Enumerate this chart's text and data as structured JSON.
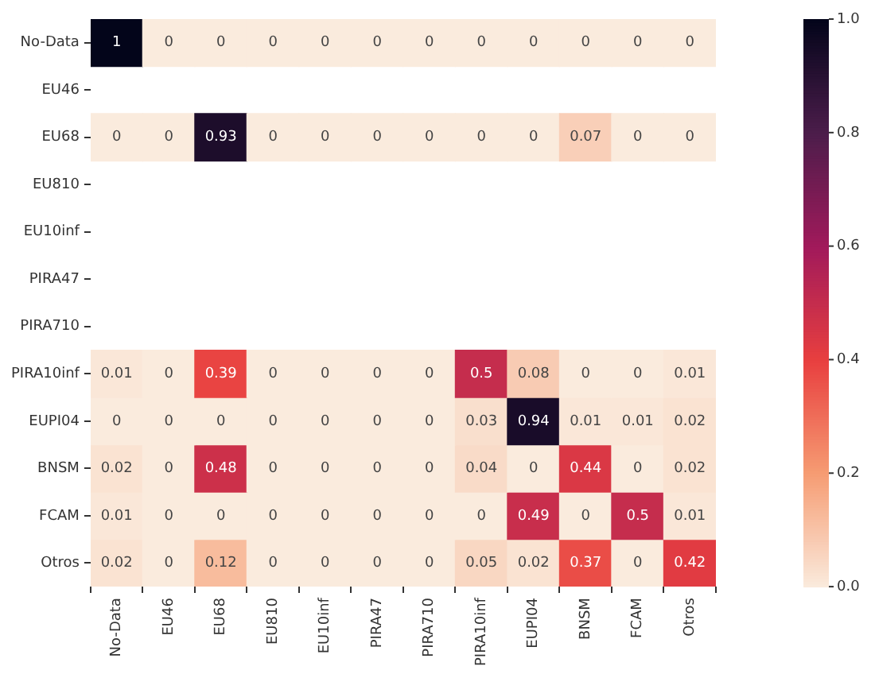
{
  "chart_data": {
    "type": "heatmap",
    "categories": [
      "No-Data",
      "EU46",
      "EU68",
      "EU810",
      "EU10inf",
      "PIRA47",
      "PIRA710",
      "PIRA10inf",
      "EUPI04",
      "BNSM",
      "FCAM",
      "Otros"
    ],
    "y_categories": [
      "No-Data",
      "EU46",
      "EU68",
      "EU810",
      "EU10inf",
      "PIRA47",
      "PIRA710",
      "PIRA10inf",
      "EUPI04",
      "BNSM",
      "FCAM",
      "Otros"
    ],
    "cells": [
      [
        1,
        0,
        0,
        0,
        0,
        0,
        0,
        0,
        0,
        0,
        0,
        0
      ],
      [
        null,
        null,
        null,
        null,
        null,
        null,
        null,
        null,
        null,
        null,
        null,
        null
      ],
      [
        0,
        0,
        0.93,
        0,
        0,
        0,
        0,
        0,
        0,
        0.07,
        0,
        0
      ],
      [
        null,
        null,
        null,
        null,
        null,
        null,
        null,
        null,
        null,
        null,
        null,
        null
      ],
      [
        null,
        null,
        null,
        null,
        null,
        null,
        null,
        null,
        null,
        null,
        null,
        null
      ],
      [
        null,
        null,
        null,
        null,
        null,
        null,
        null,
        null,
        null,
        null,
        null,
        null
      ],
      [
        null,
        null,
        null,
        null,
        null,
        null,
        null,
        null,
        null,
        null,
        null,
        null
      ],
      [
        0.01,
        0,
        0.39,
        0,
        0,
        0,
        0,
        0.5,
        0.08,
        0,
        0,
        0.01
      ],
      [
        0,
        0,
        0,
        0,
        0,
        0,
        0,
        0.03,
        0.94,
        0.01,
        0.01,
        0.02
      ],
      [
        0.02,
        0,
        0.48,
        0,
        0,
        0,
        0,
        0.04,
        0,
        0.44,
        0,
        0.02
      ],
      [
        0.01,
        0,
        0,
        0,
        0,
        0,
        0,
        0,
        0.49,
        0,
        0.5,
        0.01
      ],
      [
        0.02,
        0,
        0.12,
        0,
        0,
        0,
        0,
        0.05,
        0.02,
        0.37,
        0,
        0.42
      ]
    ],
    "clim": [
      0,
      1
    ],
    "cticks": [
      {
        "value": 0,
        "label": "0.0"
      },
      {
        "value": 0.2,
        "label": "0.2"
      },
      {
        "value": 0.4,
        "label": "0.4"
      },
      {
        "value": 0.6,
        "label": "0.6"
      },
      {
        "value": 0.8,
        "label": "0.8"
      },
      {
        "value": 1,
        "label": "1.0"
      }
    ],
    "data_labels": true
  }
}
